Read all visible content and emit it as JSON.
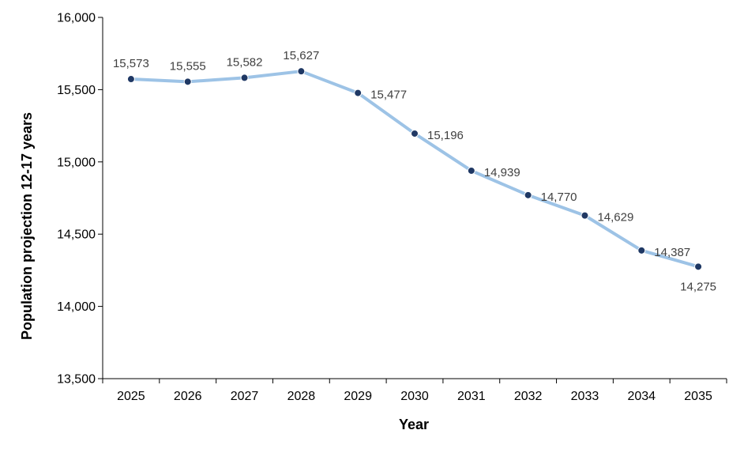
{
  "chart_data": {
    "type": "line",
    "title": "",
    "xlabel": "Year",
    "ylabel": "Population projection 12-17 years",
    "ylim": [
      13500,
      16000
    ],
    "y_ticks": [
      13500,
      14000,
      14500,
      15000,
      15500,
      16000
    ],
    "y_tick_labels": [
      "13,500",
      "14,000",
      "14,500",
      "15,000",
      "15,500",
      "16,000"
    ],
    "categories": [
      "2025",
      "2026",
      "2027",
      "2028",
      "2029",
      "2030",
      "2031",
      "2032",
      "2033",
      "2034",
      "2035"
    ],
    "series": [
      {
        "values": [
          15573,
          15555,
          15582,
          15627,
          15477,
          15196,
          14939,
          14770,
          14629,
          14387,
          14275
        ],
        "data_labels": [
          "15,573",
          "15,555",
          "15,582",
          "15,627",
          "15,477",
          "15,196",
          "14,939",
          "14,770",
          "14,629",
          "14,387",
          "14,275"
        ],
        "line_color": "#9dc3e6",
        "marker_color": "#1f3864"
      }
    ],
    "grid": false,
    "legend": "none"
  }
}
